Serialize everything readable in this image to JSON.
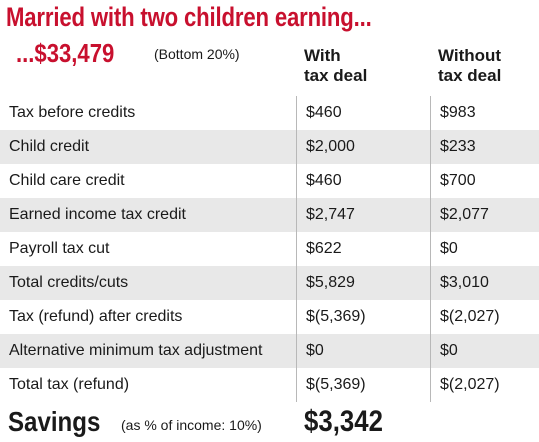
{
  "title": "Married with two children earning...",
  "subtitle": {
    "amount": "...$33,479",
    "note": "(Bottom 20%)"
  },
  "columns": {
    "with": [
      "With",
      "tax deal"
    ],
    "without": [
      "Without",
      "tax deal"
    ]
  },
  "rows": [
    {
      "label": "Tax before credits",
      "with": "$460",
      "without": "$983"
    },
    {
      "label": "Child credit",
      "with": "$2,000",
      "without": "$233"
    },
    {
      "label": "Child care credit",
      "with": "$460",
      "without": "$700"
    },
    {
      "label": "Earned income tax credit",
      "with": "$2,747",
      "without": "$2,077"
    },
    {
      "label": "Payroll tax cut",
      "with": "$622",
      "without": "$0"
    },
    {
      "label": "Total credits/cuts",
      "with": "$5,829",
      "without": "$3,010"
    },
    {
      "label": "Tax (refund) after credits",
      "with": "$(5,369)",
      "without": "$(2,027)"
    },
    {
      "label": "Alternative minimum tax adjustment",
      "with": "$0",
      "without": "$0"
    },
    {
      "label": "Total tax (refund)",
      "with": "$(5,369)",
      "without": "$(2,027)"
    }
  ],
  "savings": {
    "label": "Savings",
    "note": "(as % of income: 10%)",
    "value": "$3,342"
  },
  "colors": {
    "accent": "#c8102e",
    "shade": "#e8e8e8"
  }
}
